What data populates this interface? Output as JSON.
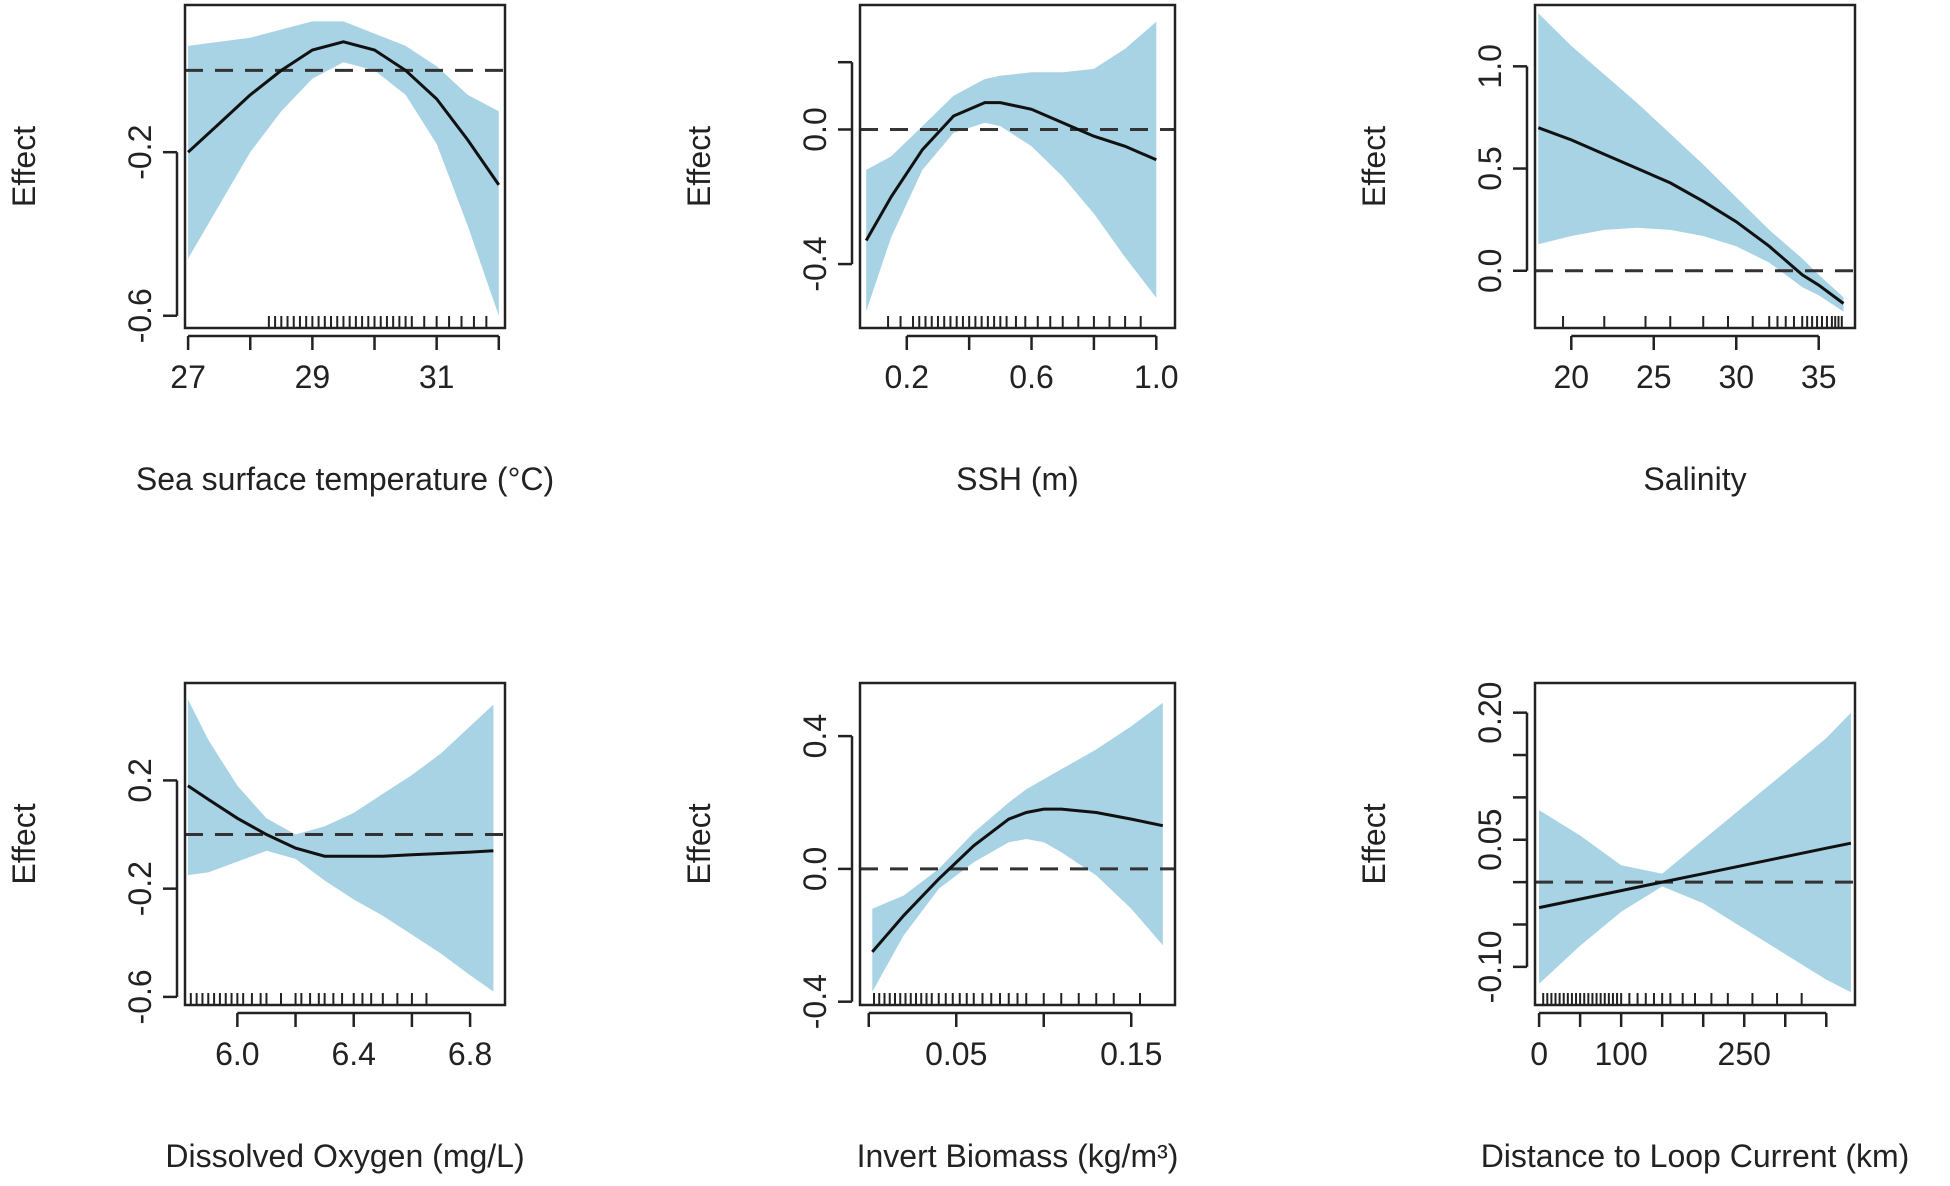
{
  "chart_data": [
    {
      "type": "line",
      "panel": "sst",
      "xlabel": "Sea surface temperature (°C)",
      "ylabel": "Effect",
      "xlim": [
        26.95,
        32.1
      ],
      "ylim": [
        -0.63,
        0.16
      ],
      "xticks": [
        27,
        28,
        29,
        30,
        31,
        32
      ],
      "xtick_labels": [
        "27",
        "29",
        "31"
      ],
      "yticks": [
        -0.6,
        -0.2
      ],
      "ytick_labels": [
        "-0.6",
        "-0.2"
      ],
      "zero_line": 0,
      "series": [
        {
          "name": "fit",
          "x": [
            27.0,
            27.5,
            28.0,
            28.5,
            29.0,
            29.5,
            30.0,
            30.5,
            31.0,
            31.5,
            32.0
          ],
          "y": [
            -0.2,
            -0.13,
            -0.06,
            0.0,
            0.05,
            0.07,
            0.05,
            0.0,
            -0.07,
            -0.17,
            -0.28
          ]
        },
        {
          "name": "ci_upper",
          "x": [
            27.0,
            27.5,
            28.0,
            28.5,
            29.0,
            29.5,
            30.0,
            30.5,
            31.0,
            31.5,
            32.0
          ],
          "y": [
            0.06,
            0.07,
            0.08,
            0.1,
            0.12,
            0.12,
            0.09,
            0.06,
            0.01,
            -0.06,
            -0.1
          ]
        },
        {
          "name": "ci_lower",
          "x": [
            27.0,
            27.5,
            28.0,
            28.5,
            29.0,
            29.5,
            30.0,
            30.5,
            31.0,
            31.5,
            32.0
          ],
          "y": [
            -0.46,
            -0.33,
            -0.2,
            -0.1,
            -0.02,
            0.02,
            0.0,
            -0.06,
            -0.18,
            -0.38,
            -0.6
          ]
        }
      ],
      "rug": [
        28.3,
        28.4,
        28.5,
        28.6,
        28.7,
        28.8,
        28.9,
        29.0,
        29.1,
        29.2,
        29.3,
        29.4,
        29.5,
        29.6,
        29.7,
        29.8,
        29.9,
        30.0,
        30.1,
        30.2,
        30.3,
        30.4,
        30.5,
        30.6,
        30.8,
        31.0,
        31.2,
        31.4,
        31.6,
        31.8
      ]
    },
    {
      "type": "line",
      "panel": "ssh",
      "xlabel": "SSH (m)",
      "ylabel": "Effect",
      "xlim": [
        0.05,
        1.06
      ],
      "ylim": [
        -0.59,
        0.37
      ],
      "xticks": [
        0.2,
        0.4,
        0.6,
        0.8,
        1.0
      ],
      "xtick_labels": [
        "0.2",
        "0.6",
        "1.0"
      ],
      "yticks": [
        -0.4,
        0.0,
        0.2
      ],
      "ytick_labels": [
        "-0.4",
        "0.0"
      ],
      "zero_line": 0,
      "series": [
        {
          "name": "fit",
          "x": [
            0.07,
            0.15,
            0.25,
            0.35,
            0.45,
            0.5,
            0.6,
            0.7,
            0.8,
            0.9,
            1.0
          ],
          "y": [
            -0.33,
            -0.2,
            -0.06,
            0.04,
            0.08,
            0.08,
            0.06,
            0.02,
            -0.02,
            -0.05,
            -0.09
          ]
        },
        {
          "name": "ci_upper",
          "x": [
            0.07,
            0.15,
            0.25,
            0.35,
            0.45,
            0.5,
            0.6,
            0.7,
            0.8,
            0.9,
            1.0
          ],
          "y": [
            -0.12,
            -0.08,
            0.01,
            0.1,
            0.15,
            0.16,
            0.17,
            0.17,
            0.18,
            0.24,
            0.32
          ]
        },
        {
          "name": "ci_lower",
          "x": [
            0.07,
            0.15,
            0.25,
            0.35,
            0.45,
            0.5,
            0.6,
            0.7,
            0.8,
            0.9,
            1.0
          ],
          "y": [
            -0.54,
            -0.32,
            -0.12,
            -0.01,
            0.02,
            0.01,
            -0.05,
            -0.14,
            -0.25,
            -0.38,
            -0.5
          ]
        }
      ],
      "rug": [
        0.14,
        0.18,
        0.22,
        0.24,
        0.26,
        0.28,
        0.3,
        0.32,
        0.34,
        0.36,
        0.38,
        0.4,
        0.42,
        0.44,
        0.46,
        0.48,
        0.5,
        0.52,
        0.55,
        0.58,
        0.62,
        0.66,
        0.7,
        0.75,
        0.8,
        0.85,
        0.9,
        0.95
      ]
    },
    {
      "type": "line",
      "panel": "salinity",
      "xlabel": "Salinity",
      "ylabel": "Effect",
      "xlim": [
        17.8,
        37.2
      ],
      "ylim": [
        -0.28,
        1.3
      ],
      "xticks": [
        20,
        25,
        30,
        35
      ],
      "xtick_labels": [
        "20",
        "25",
        "30",
        "35"
      ],
      "yticks": [
        0.0,
        0.5,
        1.0
      ],
      "ytick_labels": [
        "0.0",
        "0.5",
        "1.0"
      ],
      "zero_line": 0,
      "series": [
        {
          "name": "fit",
          "x": [
            18.0,
            20.0,
            22.0,
            24.0,
            26.0,
            28.0,
            30.0,
            32.0,
            34.0,
            35.0,
            36.5
          ],
          "y": [
            0.7,
            0.64,
            0.57,
            0.5,
            0.43,
            0.34,
            0.24,
            0.12,
            -0.02,
            -0.07,
            -0.16
          ]
        },
        {
          "name": "ci_upper",
          "x": [
            18.0,
            20.0,
            22.0,
            24.0,
            26.0,
            28.0,
            30.0,
            32.0,
            34.0,
            35.0,
            36.5
          ],
          "y": [
            1.26,
            1.1,
            0.96,
            0.82,
            0.67,
            0.52,
            0.36,
            0.2,
            0.06,
            -0.02,
            -0.13
          ]
        },
        {
          "name": "ci_lower",
          "x": [
            18.0,
            20.0,
            22.0,
            24.0,
            26.0,
            28.0,
            30.0,
            32.0,
            34.0,
            35.0,
            36.5
          ],
          "y": [
            0.13,
            0.17,
            0.2,
            0.21,
            0.2,
            0.17,
            0.12,
            0.04,
            -0.08,
            -0.12,
            -0.2
          ]
        }
      ],
      "rug": [
        19.5,
        22.0,
        24.5,
        26.0,
        28.0,
        29.5,
        31.0,
        32.0,
        32.5,
        33.0,
        33.5,
        34.0,
        34.3,
        34.6,
        34.9,
        35.2,
        35.5,
        35.8,
        36.0,
        36.2,
        36.4
      ]
    },
    {
      "type": "line",
      "panel": "dissolved-oxygen",
      "xlabel": "Dissolved Oxygen (mg/L)",
      "ylabel": "Effect",
      "xlim": [
        5.82,
        6.92
      ],
      "ylim": [
        -0.63,
        0.56
      ],
      "xticks": [
        6.0,
        6.2,
        6.4,
        6.6,
        6.8
      ],
      "xtick_labels": [
        "6.0",
        "6.4",
        "6.8"
      ],
      "yticks": [
        -0.6,
        -0.2,
        0.2
      ],
      "ytick_labels": [
        "-0.6",
        "-0.2",
        "0.2"
      ],
      "zero_line": 0,
      "series": [
        {
          "name": "fit",
          "x": [
            5.83,
            5.9,
            6.0,
            6.1,
            6.2,
            6.3,
            6.4,
            6.5,
            6.6,
            6.7,
            6.8,
            6.88
          ],
          "y": [
            0.18,
            0.13,
            0.06,
            0.0,
            -0.05,
            -0.08,
            -0.08,
            -0.08,
            -0.075,
            -0.07,
            -0.065,
            -0.06
          ]
        },
        {
          "name": "ci_upper",
          "x": [
            5.83,
            5.9,
            6.0,
            6.1,
            6.2,
            6.3,
            6.4,
            6.5,
            6.6,
            6.7,
            6.8,
            6.88
          ],
          "y": [
            0.5,
            0.35,
            0.18,
            0.06,
            0.0,
            0.03,
            0.08,
            0.15,
            0.22,
            0.3,
            0.4,
            0.48
          ]
        },
        {
          "name": "ci_lower",
          "x": [
            5.83,
            5.9,
            6.0,
            6.1,
            6.2,
            6.3,
            6.4,
            6.5,
            6.6,
            6.7,
            6.8,
            6.88
          ],
          "y": [
            -0.15,
            -0.14,
            -0.1,
            -0.06,
            -0.09,
            -0.17,
            -0.24,
            -0.3,
            -0.37,
            -0.44,
            -0.52,
            -0.58
          ]
        }
      ],
      "rug": [
        5.84,
        5.86,
        5.88,
        5.9,
        5.92,
        5.94,
        5.96,
        5.98,
        6.0,
        6.02,
        6.05,
        6.08,
        6.1,
        6.15,
        6.2,
        6.22,
        6.25,
        6.28,
        6.3,
        6.33,
        6.36,
        6.4,
        6.43,
        6.46,
        6.5,
        6.55,
        6.6,
        6.65
      ]
    },
    {
      "type": "line",
      "panel": "invert-biomass",
      "xlabel": "Invert Biomass (kg/m³)",
      "ylabel": "Effect",
      "xlim": [
        -0.005,
        0.175
      ],
      "ylim": [
        -0.41,
        0.56
      ],
      "xticks": [
        0.0,
        0.05,
        0.1,
        0.15
      ],
      "xtick_labels": [
        "0.05",
        "0.15"
      ],
      "yticks": [
        -0.4,
        0.0,
        0.4
      ],
      "ytick_labels": [
        "-0.4",
        "0.0",
        "0.4"
      ],
      "zero_line": 0,
      "series": [
        {
          "name": "fit",
          "x": [
            0.002,
            0.02,
            0.04,
            0.06,
            0.08,
            0.09,
            0.1,
            0.11,
            0.13,
            0.15,
            0.168
          ],
          "y": [
            -0.25,
            -0.14,
            -0.03,
            0.07,
            0.15,
            0.17,
            0.18,
            0.18,
            0.17,
            0.15,
            0.13
          ]
        },
        {
          "name": "ci_upper",
          "x": [
            0.002,
            0.02,
            0.04,
            0.06,
            0.08,
            0.09,
            0.1,
            0.11,
            0.13,
            0.15,
            0.168
          ],
          "y": [
            -0.12,
            -0.08,
            0.0,
            0.11,
            0.2,
            0.24,
            0.27,
            0.3,
            0.36,
            0.43,
            0.5
          ]
        },
        {
          "name": "ci_lower",
          "x": [
            0.002,
            0.02,
            0.04,
            0.06,
            0.08,
            0.09,
            0.1,
            0.11,
            0.13,
            0.15,
            0.168
          ],
          "y": [
            -0.37,
            -0.2,
            -0.06,
            0.02,
            0.08,
            0.09,
            0.08,
            0.05,
            -0.02,
            -0.12,
            -0.23
          ]
        }
      ],
      "rug": [
        0.003,
        0.006,
        0.009,
        0.012,
        0.015,
        0.018,
        0.021,
        0.024,
        0.027,
        0.03,
        0.033,
        0.036,
        0.04,
        0.044,
        0.048,
        0.052,
        0.056,
        0.06,
        0.065,
        0.07,
        0.075,
        0.08,
        0.085,
        0.09,
        0.1,
        0.11,
        0.12,
        0.13,
        0.14,
        0.155
      ]
    },
    {
      "type": "line",
      "panel": "distance-loop-current",
      "xlabel": "Distance to Loop Current (km)",
      "ylabel": "Effect",
      "xlim": [
        -5,
        385
      ],
      "ylim": [
        -0.145,
        0.235
      ],
      "xticks": [
        0,
        50,
        100,
        150,
        200,
        250,
        300,
        350
      ],
      "xtick_labels": [
        "0",
        "100",
        "250"
      ],
      "yticks": [
        -0.1,
        -0.05,
        0.0,
        0.05,
        0.1,
        0.15,
        0.2
      ],
      "ytick_labels": [
        "-0.10",
        "0.05",
        "0.20"
      ],
      "zero_line": 0,
      "series": [
        {
          "name": "fit",
          "x": [
            0,
            50,
            100,
            150,
            200,
            250,
            300,
            350,
            380
          ],
          "y": [
            -0.03,
            -0.02,
            -0.01,
            0.0,
            0.01,
            0.02,
            0.03,
            0.04,
            0.046
          ]
        },
        {
          "name": "ci_upper",
          "x": [
            0,
            50,
            100,
            150,
            200,
            250,
            300,
            350,
            380
          ],
          "y": [
            0.085,
            0.055,
            0.02,
            0.01,
            0.05,
            0.09,
            0.13,
            0.17,
            0.2
          ]
        },
        {
          "name": "ci_lower",
          "x": [
            0,
            50,
            100,
            150,
            200,
            250,
            300,
            350,
            380
          ],
          "y": [
            -0.12,
            -0.075,
            -0.035,
            -0.005,
            -0.025,
            -0.055,
            -0.085,
            -0.115,
            -0.13
          ]
        }
      ],
      "rug": [
        5,
        10,
        15,
        20,
        25,
        30,
        35,
        40,
        45,
        50,
        55,
        60,
        65,
        70,
        75,
        80,
        85,
        90,
        95,
        100,
        110,
        120,
        130,
        140,
        150,
        160,
        175,
        190,
        210,
        230,
        260,
        290,
        320
      ]
    }
  ]
}
